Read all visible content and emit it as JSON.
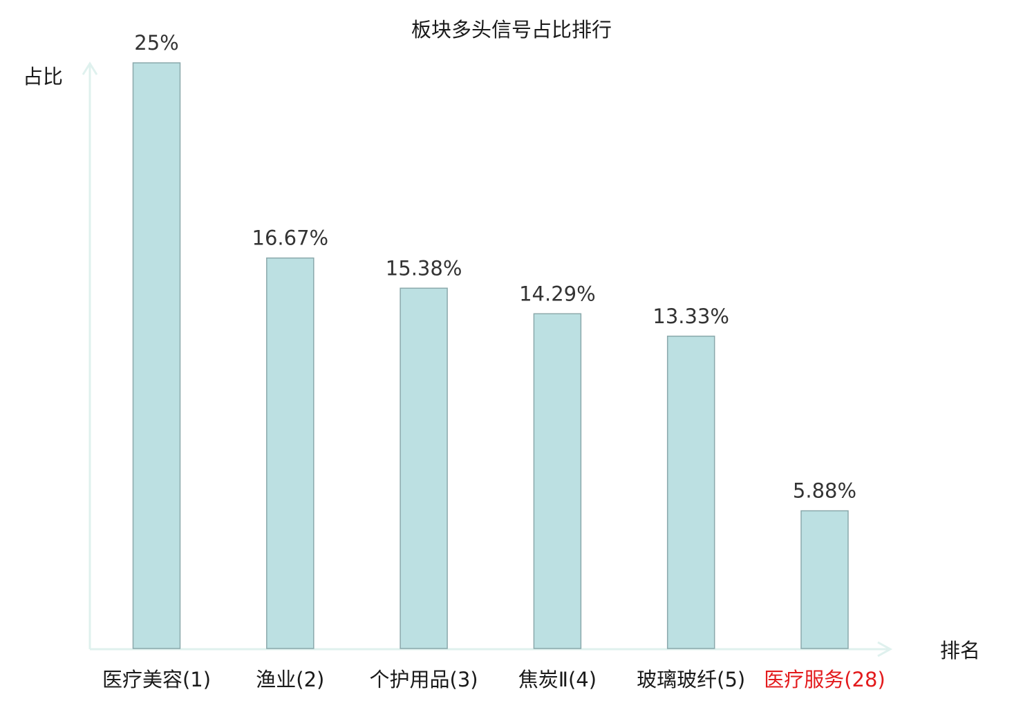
{
  "chart_data": {
    "type": "bar",
    "title": "板块多头信号占比排行",
    "ylabel": "占比",
    "xlabel": "排名",
    "categories": [
      "医疗美容(1)",
      "渔业(2)",
      "个护用品(3)",
      "焦炭Ⅱ(4)",
      "玻璃玻纤(5)",
      "医疗服务(28)"
    ],
    "values": [
      25,
      16.67,
      15.38,
      14.29,
      13.33,
      5.88
    ],
    "value_labels": [
      "25%",
      "16.67%",
      "15.38%",
      "14.29%",
      "13.33%",
      "5.88%"
    ],
    "highlight_index": 5,
    "ylim": [
      0,
      25
    ],
    "grid": false,
    "legend": "none",
    "colors": {
      "bar_fill": "#bce0e2",
      "bar_stroke": "#8aa8ab",
      "axis": "#dff1ee",
      "tick_label": "#1a1a1a",
      "highlight_label": "#e31a1c",
      "value_label": "#333333"
    }
  }
}
